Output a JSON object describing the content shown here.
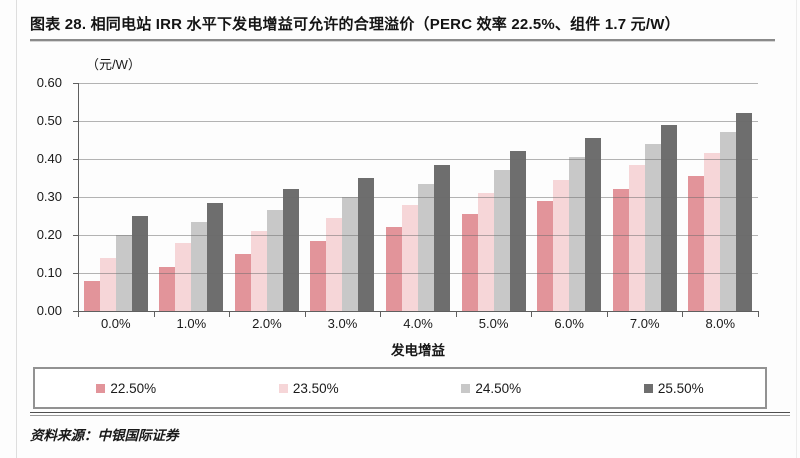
{
  "page": {
    "title": "图表 28. 相同电站 IRR 水平下发电增益可允许的合理溢价（PERC 效率 22.5%、组件 1.7 元/W）",
    "source": "资料来源：中银国际证券"
  },
  "chart_data": {
    "type": "bar",
    "title": "图表 28. 相同电站 IRR 水平下发电增益可允许的合理溢价（PERC 效率 22.5%、组件 1.7 元/W）",
    "unit_label": "（元/W）",
    "xlabel": "发电增益",
    "ylabel": "元/W",
    "ylim": [
      0,
      0.6
    ],
    "ytick_step": 0.1,
    "ytick_labels": [
      "0.60",
      "0.50",
      "0.40",
      "0.30",
      "0.20",
      "0.10",
      "0.00"
    ],
    "grid": true,
    "legend_position": "bottom",
    "categories": [
      "0.0%",
      "1.0%",
      "2.0%",
      "3.0%",
      "4.0%",
      "5.0%",
      "6.0%",
      "7.0%",
      "8.0%"
    ],
    "series": [
      {
        "name": "22.50%",
        "color": "#e2949a",
        "values": [
          0.08,
          0.115,
          0.15,
          0.185,
          0.22,
          0.255,
          0.29,
          0.32,
          0.355
        ]
      },
      {
        "name": "23.50%",
        "color": "#f6d6d8",
        "values": [
          0.14,
          0.18,
          0.21,
          0.245,
          0.28,
          0.31,
          0.345,
          0.385,
          0.415
        ]
      },
      {
        "name": "24.50%",
        "color": "#c8c8c8",
        "values": [
          0.2,
          0.235,
          0.265,
          0.3,
          0.335,
          0.37,
          0.405,
          0.44,
          0.47
        ]
      },
      {
        "name": "25.50%",
        "color": "#6e6e6e",
        "values": [
          0.25,
          0.285,
          0.32,
          0.35,
          0.385,
          0.42,
          0.455,
          0.49,
          0.52
        ]
      }
    ],
    "axis_color": "#5f5f5f",
    "gridline_color": "#696969"
  }
}
